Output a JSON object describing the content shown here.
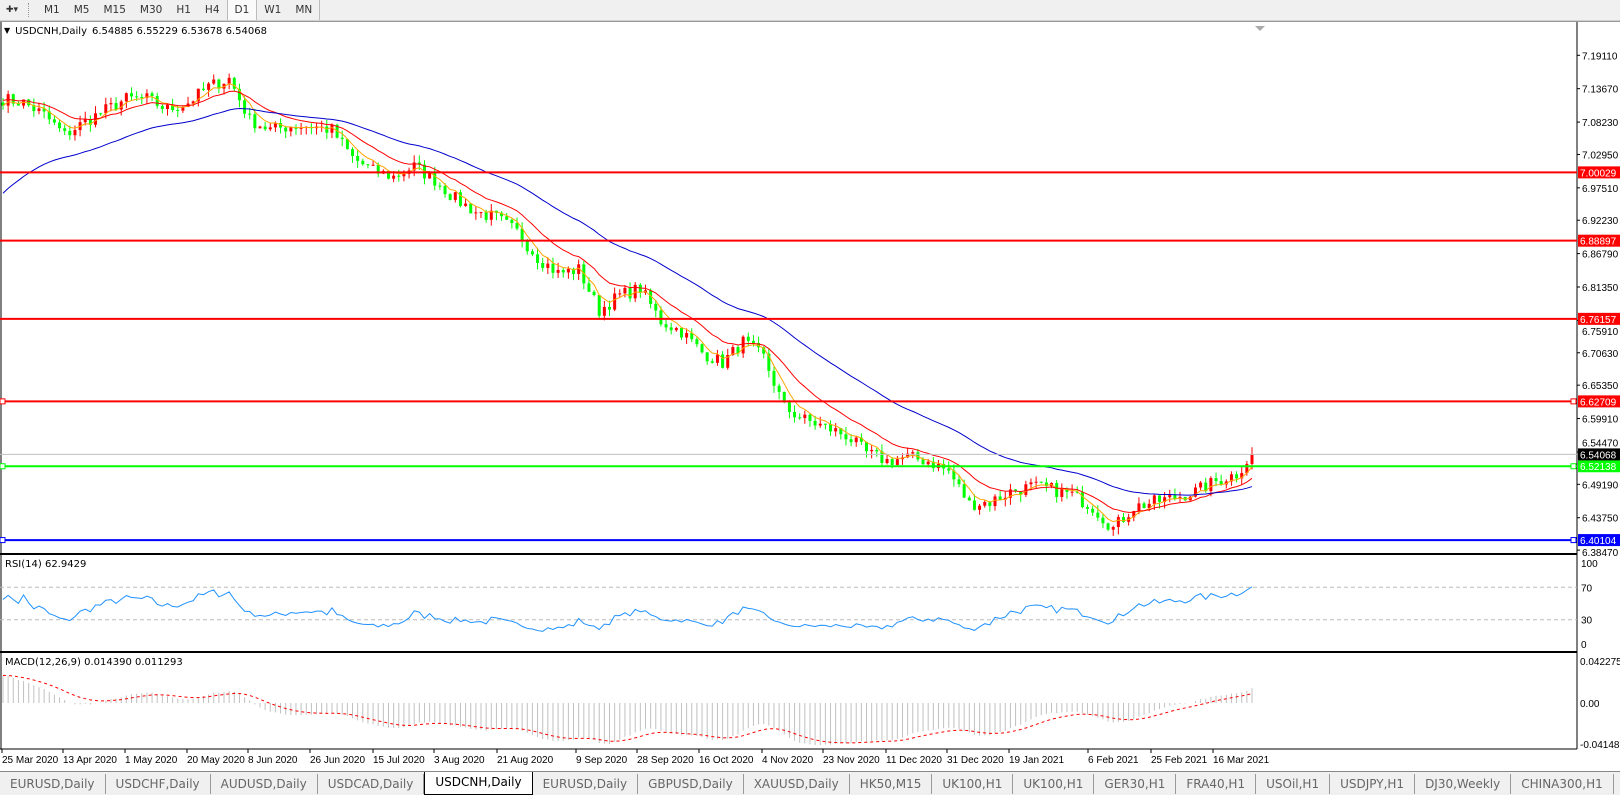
{
  "toolbar": {
    "menu_icon": "cursor-dropdown-icon",
    "timeframes": [
      "M1",
      "M5",
      "M15",
      "M30",
      "H1",
      "H4",
      "D1",
      "W1",
      "MN"
    ],
    "active_timeframe": "D1"
  },
  "chart": {
    "symbol_label": "USDCNH,Daily",
    "ohlc": "6.54885 6.55229 6.53678 6.54068",
    "price_axis_ticks": [
      "7.19110",
      "7.13670",
      "7.08230",
      "7.02950",
      "6.97510",
      "6.92230",
      "6.86790",
      "6.81350",
      "6.75910",
      "6.70630",
      "6.65350",
      "6.59910",
      "6.54470",
      "6.49190",
      "6.43750",
      "6.38470"
    ],
    "horizontal_lines": [
      {
        "price": 7.00029,
        "label": "7.00029",
        "color": "#ff0000"
      },
      {
        "price": 6.88897,
        "label": "6.88897",
        "color": "#ff0000"
      },
      {
        "price": 6.76157,
        "label": "6.76157",
        "color": "#ff0000"
      },
      {
        "price": 6.62709,
        "label": "6.62709",
        "color": "#ff0000"
      },
      {
        "price": 6.52138,
        "label": "6.52138",
        "color": "#00ff00"
      },
      {
        "price": 6.40104,
        "label": "6.40104",
        "color": "#0000ff"
      }
    ],
    "current_price": {
      "price": 6.54068,
      "label": "6.54068",
      "color": "#000000"
    },
    "bull_candle_color": "#ff0000",
    "bear_candle_color": "#00ff00",
    "ma_colors": [
      "#ffa500",
      "#ff0000",
      "#0000cd"
    ]
  },
  "rsi": {
    "label": "RSI(14) 62.9429",
    "axis_ticks": [
      "100",
      "70",
      "30",
      "0"
    ],
    "levels": [
      70,
      30
    ],
    "line_color": "#1e90ff"
  },
  "macd": {
    "label": "MACD(12,26,9) 0.014390 0.011293",
    "axis_ticks": [
      "0.042275",
      "0.00",
      "-0.04148"
    ],
    "histogram_color": "#c0c0c0",
    "signal_color": "#ff0000"
  },
  "time_axis": [
    "25 Mar 2020",
    "13 Apr 2020",
    "1 May 2020",
    "20 May 2020",
    "8 Jun 2020",
    "26 Jun 2020",
    "15 Jul 2020",
    "3 Aug 2020",
    "21 Aug 2020",
    "9 Sep 2020",
    "28 Sep 2020",
    "16 Oct 2020",
    "4 Nov 2020",
    "23 Nov 2020",
    "11 Dec 2020",
    "31 Dec 2020",
    "19 Jan 2021",
    "6 Feb 2021",
    "25 Feb 2021",
    "16 Mar 2021"
  ],
  "tabs": [
    "EURUSD,Daily",
    "USDCHF,Daily",
    "AUDUSD,Daily",
    "USDCAD,Daily",
    "USDCNH,Daily",
    "EURUSD,Daily",
    "GBPUSD,Daily",
    "XAUUSD,Daily",
    "HK50,M15",
    "UK100,H1",
    "UK100,H1",
    "GER30,H1",
    "FRA40,H1",
    "USOil,H1",
    "USDJPY,H1",
    "DJ30,Weekly",
    "CHINA300,H1"
  ],
  "active_tab": "USDCNH,Daily",
  "chart_data": {
    "type": "candlestick",
    "note_series": "approximate closes sampled evenly from 25 Mar 2020 to 19 Mar 2021",
    "closes": [
      7.12,
      7.114,
      7.094,
      7.061,
      7.083,
      7.102,
      7.12,
      7.12,
      7.103,
      7.114,
      7.14,
      7.153,
      7.086,
      7.07,
      7.076,
      7.076,
      7.069,
      7.024,
      7.003,
      6.993,
      7.01,
      6.988,
      6.957,
      6.936,
      6.926,
      6.903,
      6.862,
      6.836,
      6.842,
      6.775,
      6.8,
      6.811,
      6.758,
      6.741,
      6.707,
      6.69,
      6.724,
      6.699,
      6.617,
      6.597,
      6.585,
      6.572,
      6.543,
      6.53,
      6.536,
      6.53,
      6.513,
      6.46,
      6.463,
      6.48,
      6.488,
      6.484,
      6.475,
      6.455,
      6.42,
      6.455,
      6.463,
      6.471,
      6.48,
      6.497,
      6.509,
      6.54068
    ],
    "ylim": [
      6.3847,
      7.215
    ]
  }
}
